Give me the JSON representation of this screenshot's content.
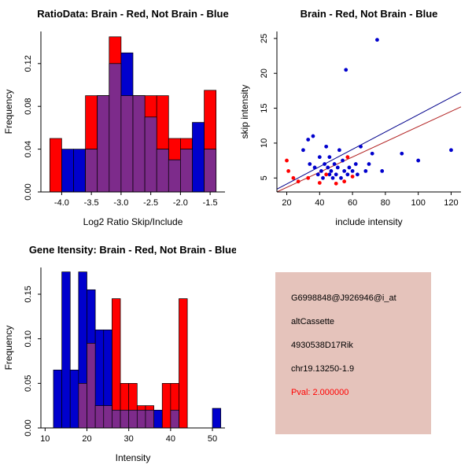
{
  "colors": {
    "red": "#FF0000",
    "blue": "#0000CD",
    "overlap": "#7D2B8B",
    "line_blue": "#00008B",
    "line_red": "#B22222",
    "axis": "#000000",
    "info_bg": "#E5C3BB",
    "pval": "#FF0000"
  },
  "chart_data": [
    {
      "type": "bar",
      "name": "ratio-histogram",
      "title": "RatioData: Brain - Red, Not Brain - Blue",
      "xlabel": "Log2 Ratio Skip/Include",
      "ylabel": "Frequency",
      "xlim": [
        -4.35,
        -1.25
      ],
      "ylim": [
        0,
        0.15
      ],
      "xticks": [
        -4.0,
        -3.5,
        -3.0,
        -2.5,
        -2.0,
        -1.5
      ],
      "xtick_labels": [
        "-4.0",
        "-3.5",
        "-3.0",
        "-2.5",
        "-2.0",
        "-1.5"
      ],
      "yticks": [
        0,
        0.04,
        0.08,
        0.12
      ],
      "ytick_labels": [
        "0.00",
        "0.04",
        "0.08",
        "0.12"
      ],
      "grid": false,
      "legend": "Brain - Red, Not Brain - Blue",
      "bins": {
        "start": -4.2,
        "width": 0.2
      },
      "series": [
        {
          "name": "Brain",
          "color": "red",
          "heights": [
            0.05,
            0,
            0,
            0.09,
            0.09,
            0.145,
            0.09,
            0.09,
            0.09,
            0.09,
            0.05,
            0.05,
            0,
            0.095
          ]
        },
        {
          "name": "Not Brain",
          "color": "blue",
          "heights": [
            0,
            0.04,
            0.04,
            0.04,
            0.09,
            0.12,
            0.13,
            0.09,
            0.07,
            0.04,
            0.03,
            0.04,
            0.065,
            0.04
          ]
        }
      ]
    },
    {
      "type": "scatter",
      "name": "intensity-scatter",
      "title": "Brain - Red, Not Brain - Blue",
      "xlabel": "include intensity",
      "ylabel": "skip intensity",
      "xlim": [
        14,
        126
      ],
      "ylim": [
        3,
        26
      ],
      "xticks": [
        20,
        40,
        60,
        80,
        100,
        120
      ],
      "xtick_labels": [
        "20",
        "40",
        "60",
        "80",
        "100",
        "120"
      ],
      "yticks": [
        5,
        10,
        15,
        20,
        25
      ],
      "ytick_labels": [
        "5",
        "10",
        "15",
        "20",
        "25"
      ],
      "grid": false,
      "legend": "Brain - Red, Not Brain - Blue",
      "series": [
        {
          "name": "Not Brain",
          "color": "blue",
          "points": [
            [
              30,
              9
            ],
            [
              33,
              10.5
            ],
            [
              34,
              7
            ],
            [
              36,
              11
            ],
            [
              37,
              6.5
            ],
            [
              39,
              5.5
            ],
            [
              40,
              8
            ],
            [
              41,
              6
            ],
            [
              42,
              5
            ],
            [
              43,
              7
            ],
            [
              44,
              9.5
            ],
            [
              45,
              6.5
            ],
            [
              46,
              5.5
            ],
            [
              46,
              8
            ],
            [
              47,
              6
            ],
            [
              48,
              5
            ],
            [
              49,
              7
            ],
            [
              50,
              5.5
            ],
            [
              51,
              6.5
            ],
            [
              52,
              9
            ],
            [
              53,
              5
            ],
            [
              54,
              7.5
            ],
            [
              55,
              6
            ],
            [
              56,
              20.5
            ],
            [
              57,
              5.5
            ],
            [
              58,
              6.5
            ],
            [
              60,
              6
            ],
            [
              62,
              7
            ],
            [
              63,
              5.5
            ],
            [
              65,
              9.5
            ],
            [
              68,
              6
            ],
            [
              70,
              7
            ],
            [
              72,
              8.5
            ],
            [
              75,
              24.8
            ],
            [
              78,
              6
            ],
            [
              90,
              8.5
            ],
            [
              100,
              7.5
            ],
            [
              120,
              9
            ]
          ]
        },
        {
          "name": "Brain",
          "color": "red",
          "points": [
            [
              20,
              7.5
            ],
            [
              21,
              6
            ],
            [
              24,
              5
            ],
            [
              27,
              4.5
            ],
            [
              33,
              5
            ],
            [
              40,
              4.3
            ],
            [
              44,
              5.5
            ],
            [
              50,
              4.2
            ],
            [
              55,
              4.5
            ],
            [
              57,
              8
            ],
            [
              60,
              5.2
            ]
          ]
        }
      ],
      "lines": [
        {
          "name": "not-brain-fit",
          "color": "line_blue",
          "x": [
            14,
            126
          ],
          "y": [
            3.4,
            17.3
          ]
        },
        {
          "name": "brain-fit",
          "color": "line_red",
          "x": [
            14,
            126
          ],
          "y": [
            3.0,
            15.2
          ]
        }
      ]
    },
    {
      "type": "bar",
      "name": "gene-intensity-histogram",
      "title": "Gene Itensity: Brain - Red, Not Brain - Blue",
      "xlabel": "Intensity",
      "ylabel": "Frequency",
      "xlim": [
        9,
        53
      ],
      "ylim": [
        0,
        0.18
      ],
      "xticks": [
        10,
        20,
        30,
        40,
        50
      ],
      "xtick_labels": [
        "10",
        "20",
        "30",
        "40",
        "50"
      ],
      "yticks": [
        0,
        0.05,
        0.1,
        0.15
      ],
      "ytick_labels": [
        "0.00",
        "0.05",
        "0.10",
        "0.15"
      ],
      "grid": false,
      "legend": "Brain - Red, Not Brain - Blue",
      "bins": {
        "start": 10,
        "width": 2
      },
      "series": [
        {
          "name": "Brain",
          "color": "red",
          "heights": [
            0,
            0,
            0,
            0,
            0.05,
            0.095,
            0.025,
            0.025,
            0.145,
            0.05,
            0.05,
            0.025,
            0.025,
            0,
            0.05,
            0.05,
            0.145,
            0,
            0,
            0,
            0,
            0
          ]
        },
        {
          "name": "Not Brain",
          "color": "blue",
          "heights": [
            0,
            0.065,
            0.175,
            0.065,
            0.175,
            0.155,
            0.11,
            0.11,
            0.02,
            0.02,
            0.02,
            0.02,
            0.02,
            0.02,
            0,
            0.02,
            0,
            0,
            0,
            0,
            0.022,
            0
          ]
        }
      ]
    }
  ],
  "info_panel": {
    "lines": [
      "G6998848@J926946@i_at",
      "altCassette",
      "4930538D17Rik",
      "chr19.13250-1.9",
      "Pval: 2.000000"
    ]
  }
}
